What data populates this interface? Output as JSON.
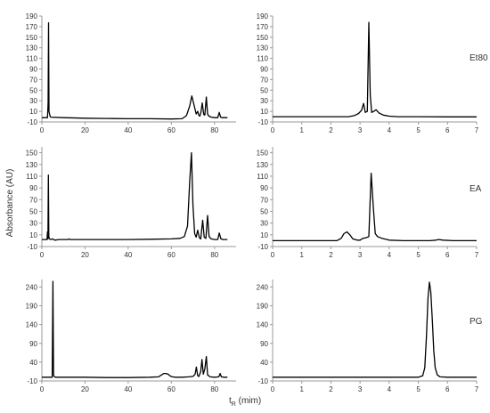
{
  "chart_data": [
    {
      "type": "line",
      "panel": "top-left",
      "xlim": [
        0,
        90
      ],
      "ylim": [
        -10,
        190
      ],
      "xticks": [
        0,
        20,
        40,
        60,
        80
      ],
      "yticks": [
        -10,
        10,
        30,
        50,
        70,
        90,
        110,
        130,
        150,
        170,
        190
      ],
      "series": [
        {
          "x": [
            0,
            2.6,
            2.9,
            3.1,
            3.3,
            3.5,
            3.8,
            4.1,
            10,
            20,
            30,
            40,
            50,
            60,
            65,
            67,
            68.5,
            69.5,
            70.5,
            71.5,
            72.2,
            72.7,
            73.2,
            73.7,
            74.3,
            75,
            75.5,
            76.2,
            76.8,
            77.4,
            78.5,
            80,
            81.5,
            82.2,
            82.8,
            83.5,
            85,
            86
          ],
          "y": [
            -2,
            -2,
            25,
            177,
            10,
            6,
            1,
            -1,
            -2,
            -3,
            -3.5,
            -4,
            -4,
            -4.5,
            -4,
            2,
            20,
            39,
            22,
            5,
            10,
            3,
            1,
            8,
            26,
            4,
            3,
            37,
            5,
            1,
            -1,
            -2,
            -2,
            8,
            -1,
            -2,
            -2,
            -2
          ]
        }
      ]
    },
    {
      "type": "line",
      "panel": "top-right",
      "xlim": [
        0,
        7
      ],
      "ylim": [
        -10,
        190
      ],
      "xticks": [
        0,
        1,
        2,
        3,
        4,
        5,
        6,
        7
      ],
      "yticks": [
        -10,
        10,
        30,
        50,
        70,
        90,
        110,
        130,
        150,
        170,
        190
      ],
      "series": [
        {
          "x": [
            0,
            2.3,
            2.6,
            2.8,
            2.95,
            3.05,
            3.12,
            3.18,
            3.25,
            3.3,
            3.35,
            3.4,
            3.47,
            3.55,
            3.65,
            3.8,
            4.0,
            4.3,
            5,
            6,
            7
          ],
          "y": [
            0,
            0,
            0,
            2,
            6,
            12,
            25,
            8,
            10,
            178,
            40,
            8,
            10,
            13,
            7,
            3,
            1,
            0,
            0,
            -0.5,
            -0.5
          ]
        }
      ]
    },
    {
      "type": "line",
      "panel": "middle-left",
      "xlim": [
        0,
        90
      ],
      "ylim": [
        -10,
        160
      ],
      "xticks": [
        0,
        20,
        40,
        60,
        80
      ],
      "yticks": [
        -10,
        10,
        30,
        50,
        70,
        90,
        110,
        130,
        150
      ],
      "series": [
        {
          "x": [
            0,
            2.4,
            2.6,
            2.8,
            3.0,
            3.2,
            3.4,
            3.6,
            4.0,
            5.0,
            6.0,
            8.0,
            12,
            12.5,
            13,
            20,
            30,
            40,
            50,
            60,
            64,
            66,
            67.5,
            68.5,
            69.3,
            70,
            70.8,
            71.5,
            72.2,
            73,
            73.6,
            74.5,
            75.2,
            76,
            76.8,
            77.5,
            78.5,
            80,
            81.5,
            82.2,
            83,
            84,
            86
          ],
          "y": [
            2,
            2,
            15,
            3,
            112,
            8,
            4,
            3,
            2,
            3,
            1,
            2,
            2,
            3,
            2,
            2,
            2,
            2,
            2.5,
            3,
            4,
            7,
            25,
            100,
            150,
            60,
            12,
            6,
            18,
            5,
            3,
            35,
            6,
            4,
            43,
            7,
            3,
            2,
            2,
            13,
            3,
            2,
            2
          ]
        }
      ]
    },
    {
      "type": "line",
      "panel": "middle-right",
      "xlim": [
        0,
        7
      ],
      "ylim": [
        -10,
        160
      ],
      "xticks": [
        0,
        1,
        2,
        3,
        4,
        5,
        6,
        7
      ],
      "yticks": [
        -10,
        10,
        30,
        50,
        70,
        90,
        110,
        130,
        150
      ],
      "series": [
        {
          "x": [
            0,
            2.2,
            2.35,
            2.45,
            2.55,
            2.65,
            2.75,
            2.9,
            3.0,
            3.1,
            3.2,
            3.3,
            3.38,
            3.45,
            3.52,
            3.6,
            3.75,
            4.0,
            4.5,
            5.4,
            5.6,
            5.7,
            5.85,
            6.2,
            7
          ],
          "y": [
            0,
            0,
            4,
            12,
            15,
            10,
            3,
            1,
            1,
            4,
            5,
            7,
            115,
            60,
            12,
            7,
            4,
            1,
            0,
            0,
            1,
            2,
            1,
            0,
            0
          ]
        }
      ]
    },
    {
      "type": "line",
      "panel": "bottom-left",
      "xlim": [
        0,
        90
      ],
      "ylim": [
        -10,
        260
      ],
      "xticks": [
        0,
        20,
        40,
        60,
        80
      ],
      "yticks": [
        -10,
        40,
        90,
        140,
        190,
        240
      ],
      "series": [
        {
          "x": [
            0,
            4.8,
            5.1,
            5.4,
            5.9,
            6.4,
            10,
            20,
            30,
            40,
            50,
            54,
            55.5,
            56.5,
            57.5,
            58.5,
            59.5,
            60.5,
            62,
            65,
            68,
            70,
            71,
            71.6,
            72.2,
            72.8,
            73.6,
            74.2,
            74.8,
            75.5,
            76.2,
            76.8,
            78,
            80,
            82,
            82.6,
            83.2,
            84.5,
            86
          ],
          "y": [
            0,
            0,
            255,
            5,
            1,
            0,
            0,
            0,
            -1,
            -1,
            0,
            1,
            6,
            10,
            10,
            8,
            3,
            1,
            0,
            0,
            1,
            2,
            8,
            27,
            4,
            2,
            15,
            47,
            8,
            22,
            55,
            6,
            1,
            0,
            1,
            10,
            1,
            0,
            0
          ]
        }
      ]
    },
    {
      "type": "line",
      "panel": "bottom-right",
      "xlim": [
        0,
        7
      ],
      "ylim": [
        -10,
        260
      ],
      "xticks": [
        0,
        1,
        2,
        3,
        4,
        5,
        6,
        7
      ],
      "yticks": [
        -10,
        40,
        90,
        140,
        190,
        240
      ],
      "series": [
        {
          "x": [
            0,
            5.0,
            5.15,
            5.22,
            5.28,
            5.33,
            5.38,
            5.43,
            5.48,
            5.53,
            5.58,
            5.65,
            5.75,
            6,
            7
          ],
          "y": [
            0,
            0,
            4,
            25,
            110,
            210,
            253,
            225,
            150,
            70,
            25,
            6,
            1,
            0,
            0
          ]
        }
      ]
    }
  ],
  "labels": {
    "ylabel": "Absorbance (AU)",
    "xlabel_main": "t",
    "xlabel_sub": "R",
    "xlabel_unit": " (mim)",
    "rows": [
      "Et80",
      "EA",
      "PG"
    ]
  },
  "colors": {
    "line": "#000000",
    "axis": "#999999",
    "tick_text": "#333333"
  }
}
